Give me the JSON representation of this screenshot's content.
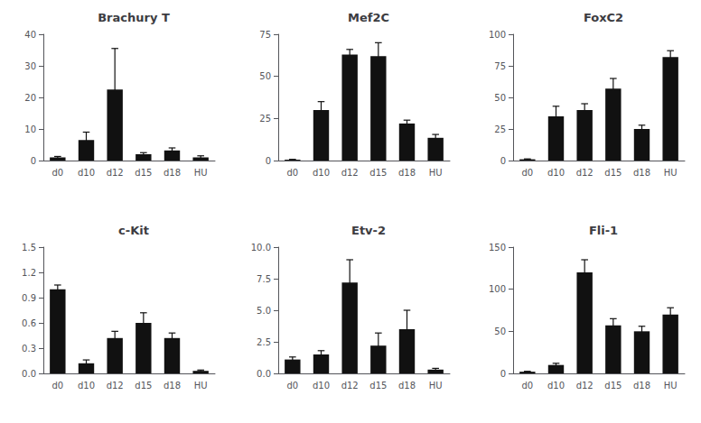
{
  "chart_data": [
    {
      "type": "bar",
      "title": "Brachury T",
      "categories": [
        "d0",
        "d10",
        "d12",
        "d15",
        "d18",
        "HU"
      ],
      "values": [
        1.0,
        6.5,
        22.5,
        2.0,
        3.2,
        1.0
      ],
      "errors": [
        0.3,
        2.5,
        13.0,
        0.5,
        0.8,
        0.5
      ],
      "color": "#111111",
      "ylim": [
        0,
        40
      ],
      "yticks": [
        0,
        10,
        20,
        30,
        40
      ],
      "grid": false
    },
    {
      "type": "bar",
      "title": "Mef2C",
      "categories": [
        "d0",
        "d10",
        "d12",
        "d15",
        "d18",
        "HU"
      ],
      "values": [
        0.5,
        30.0,
        63.0,
        62.0,
        22.0,
        13.5
      ],
      "errors": [
        0.2,
        5.0,
        3.0,
        8.0,
        2.0,
        2.0
      ],
      "color": "#111111",
      "ylim": [
        0,
        75
      ],
      "yticks": [
        0,
        25,
        50,
        75
      ],
      "grid": false
    },
    {
      "type": "bar",
      "title": "FoxC2",
      "categories": [
        "d0",
        "d10",
        "d12",
        "d15",
        "d18",
        "HU"
      ],
      "values": [
        1.0,
        35.0,
        40.0,
        57.0,
        25.0,
        82.0
      ],
      "errors": [
        0.3,
        8.0,
        5.0,
        8.0,
        3.0,
        5.0
      ],
      "color": "#111111",
      "ylim": [
        0,
        100
      ],
      "yticks": [
        0,
        25,
        50,
        75,
        100
      ],
      "grid": false
    },
    {
      "type": "bar",
      "title": "c-Kit",
      "categories": [
        "d0",
        "d10",
        "d12",
        "d15",
        "d18",
        "HU"
      ],
      "values": [
        1.0,
        0.12,
        0.42,
        0.6,
        0.42,
        0.03
      ],
      "errors": [
        0.05,
        0.04,
        0.08,
        0.12,
        0.06,
        0.01
      ],
      "color": "#111111",
      "ylim": [
        0,
        1.5
      ],
      "yticks": [
        {
          "value": 0,
          "label": "0.0"
        },
        0.3,
        0.6,
        0.9,
        1.2,
        1.5
      ],
      "grid": false
    },
    {
      "type": "bar",
      "title": "Etv-2",
      "categories": [
        "d0",
        "d10",
        "d12",
        "d15",
        "d18",
        "HU"
      ],
      "values": [
        1.1,
        1.5,
        7.2,
        2.2,
        3.5,
        0.3
      ],
      "errors": [
        0.2,
        0.3,
        1.8,
        1.0,
        1.5,
        0.1
      ],
      "color": "#111111",
      "ylim": [
        0,
        10.0
      ],
      "yticks": [
        {
          "value": 0,
          "label": "0.0"
        },
        2.5,
        {
          "value": 5.0,
          "label": "5.0"
        },
        7.5,
        {
          "value": 10.0,
          "label": "10.0"
        }
      ],
      "grid": false
    },
    {
      "type": "bar",
      "title": "Fli-1",
      "categories": [
        "d0",
        "d10",
        "d12",
        "d15",
        "d18",
        "HU"
      ],
      "values": [
        2.0,
        10.0,
        120.0,
        57.0,
        50.0,
        70.0
      ],
      "errors": [
        0.5,
        2.0,
        15.0,
        8.0,
        6.0,
        8.0
      ],
      "color": "#111111",
      "ylim": [
        0,
        150
      ],
      "yticks": [
        0,
        50,
        100,
        150
      ],
      "grid": false
    }
  ]
}
